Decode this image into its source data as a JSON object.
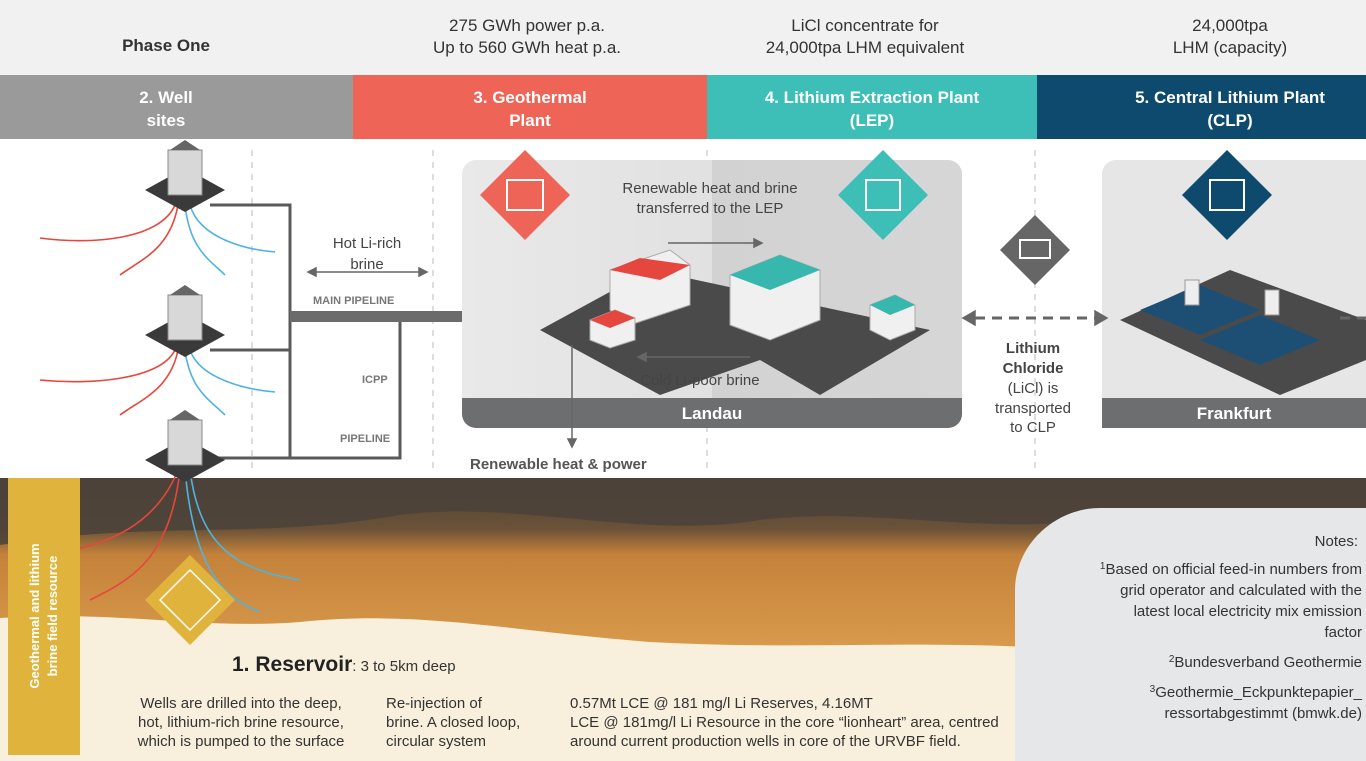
{
  "header": {
    "phase": "Phase One",
    "columns": [
      {
        "lines": [
          "275 GWh power p.a.",
          "Up to 560 GWh heat p.a."
        ]
      },
      {
        "lines": [
          "LiCl concentrate for",
          "24,000tpa LHM equivalent"
        ]
      },
      {
        "lines": [
          "24,000tpa",
          "LHM (capacity)"
        ]
      }
    ]
  },
  "stages": [
    {
      "lines": [
        "2. Well",
        "sites"
      ]
    },
    {
      "lines": [
        "3. Geothermal",
        "Plant"
      ]
    },
    {
      "lines": [
        "4. Lithium Extraction Plant",
        "(LEP)"
      ]
    },
    {
      "lines": [
        "5. Central Lithium Plant",
        "(CLP)"
      ]
    }
  ],
  "labels": {
    "hot_brine": [
      "Hot Li-rich",
      "brine"
    ],
    "main_pipeline": "MAIN PIPELINE",
    "icpp": "ICPP",
    "pipeline": "PIPELINE",
    "transfer": [
      "Renewable heat and brine",
      "transferred to the LEP"
    ],
    "cold_brine": "Cold Li-poor brine",
    "landau": "Landau",
    "frankfurt": "Frankfurt",
    "heat_power": "Renewable heat & power",
    "licl_bold": [
      "Lithium",
      "Chloride"
    ],
    "licl_text": [
      "(LiCl) is",
      "transported",
      "to CLP"
    ]
  },
  "resource": {
    "side_label": [
      "Geothermal and lithium",
      "brine field resource"
    ],
    "title": "1. Reservoir",
    "subtitle": ": 3 to 5km deep",
    "descriptions": [
      {
        "lines": [
          "Wells are drilled into the deep,",
          "hot, lithium-rich brine resource,",
          "which is pumped to the surface"
        ]
      },
      {
        "lines": [
          "Re-injection of",
          "brine. A closed loop,",
          "circular system"
        ]
      },
      {
        "lines": [
          "0.57Mt LCE @ 181 mg/l Li Reserves, 4.16MT",
          "LCE @ 181mg/l Li Resource in the core “lionheart” area, centred",
          "around current production wells in core of the URVBF field."
        ]
      }
    ]
  },
  "notes": {
    "title": "Notes:",
    "items": [
      {
        "marker": "1",
        "lines": [
          "Based on official feed-in numbers from",
          "grid operator and calculated with the",
          "latest local electricity mix emission",
          "factor"
        ]
      },
      {
        "marker": "2",
        "lines": [
          "Bundesverband Geothermie"
        ]
      },
      {
        "marker": "3",
        "lines": [
          "Geothermie_Eckpunktepapier_",
          "ressortabgestimmt (bmwk.de)"
        ]
      }
    ]
  }
}
